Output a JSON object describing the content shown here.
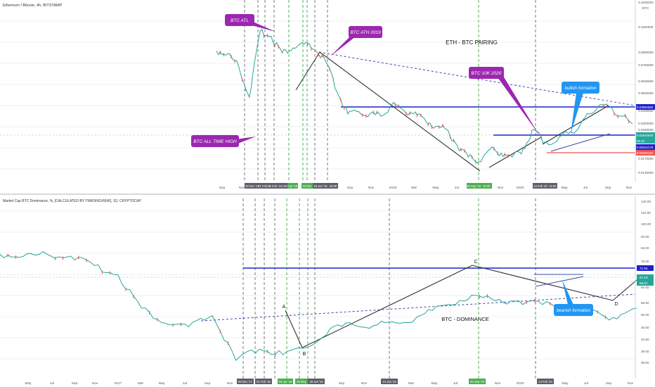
{
  "top_panel": {
    "title": "Ethereum / Bitcoin, 4h, BITSTAMP",
    "currency": "BTC",
    "center_label": "ETH  - BTC PAIRING",
    "price_labels": [
      "0.1000000",
      "0.1100000",
      "0.0900000",
      "0.0750000",
      "0.0600000",
      "0.0500000",
      "0.0400000",
      "0.0300000",
      "0.0250000",
      "0.0200000",
      "0.0170000",
      "0.0145000"
    ],
    "tags": {
      "blue": "0.03963682",
      "green": "0.02640000",
      "teal": "0.02614179",
      "red": "0.02045152",
      "small_teal": "96.34"
    },
    "callouts": {
      "btc_atl": "BTC ATL",
      "btc_ath_2019": "BTC ATH 2019",
      "btc_all_time_high": "BTC ALL TIME HIGH",
      "btc_10k_2020": "BTC 10K 2020",
      "bullish": "bullish formation"
    },
    "time_labels": [
      "Sep",
      "Nov",
      "Mar",
      "May",
      "Jul",
      "Sep",
      "Nov",
      "2019",
      "Mar",
      "May",
      "Jul",
      "Sep",
      "Nov",
      "2020",
      "Mar",
      "May",
      "Jul",
      "Sep",
      "Nov"
    ],
    "date_tags": [
      "19 Dec '17",
      "01 Feb '18",
      "02 Feb '18",
      "11:00",
      "Apr '18",
      "10 Dec",
      "26 Jun '18",
      "02:00",
      "06 Sep '19",
      "10:00",
      "13 Feb '20",
      "11:00"
    ]
  },
  "bottom_panel": {
    "title": "Market Cap BTC Dominance, %, [CALCULATED BY TRADINGVIEW], 1D, CRYPTOCAP",
    "center_label": "BTC - DOMINANCE",
    "price_labels": [
      "120.00",
      "110.00",
      "100.00",
      "92.00",
      "84.00",
      "76.00",
      "71.94",
      "67.18",
      "64.00",
      "56.50",
      "50.00",
      "46.50",
      "42.50",
      "38.50",
      "35.50"
    ],
    "tags": {
      "blue": "71.94",
      "teal": "67.18",
      "small_teal": "66.87"
    },
    "callouts": {
      "bearish": "bearish formation"
    },
    "points": {
      "a": "A",
      "b": "B",
      "c": "C",
      "d": "D"
    },
    "time_labels": [
      "May",
      "Jul",
      "Sep",
      "Nov",
      "2017",
      "Mar",
      "May",
      "Jul",
      "Sep",
      "Nov",
      "Mar",
      "May",
      "Jul",
      "Sep",
      "Nov",
      "2019",
      "Mar",
      "May",
      "Jul",
      "Sep",
      "Nov",
      "2020",
      "Mar",
      "May",
      "Jul",
      "Sep",
      "Nov"
    ],
    "date_tags": [
      "08 Dec '17",
      "01 Feb '18",
      "02 Apr '18",
      "28 May",
      "26 Jun '18",
      "13 Jan '19",
      "05 Sep '19",
      "13 Feb '20"
    ]
  },
  "colors": {
    "purple": "#9c27b0",
    "blue": "#1e22c8",
    "green": "#26a69a",
    "red": "#ef5350",
    "callout_blue": "#2196f3",
    "dark_tag": "#5d606b",
    "green_tag": "#4caf50"
  },
  "chart_data": [
    {
      "type": "line",
      "title": "Ethereum / Bitcoin, 4h, BITSTAMP",
      "x": [
        "2017-09",
        "2017-10",
        "2017-11",
        "2017-12",
        "2018-01",
        "2018-02",
        "2018-03",
        "2018-04",
        "2018-05",
        "2018-06",
        "2018-07",
        "2018-08",
        "2018-09",
        "2018-10",
        "2018-11",
        "2018-12",
        "2019-01",
        "2019-02",
        "2019-03",
        "2019-04",
        "2019-05",
        "2019-06",
        "2019-07",
        "2019-08",
        "2019-09",
        "2019-10",
        "2019-11",
        "2019-12",
        "2020-01",
        "2020-02",
        "2020-03",
        "2020-04",
        "2020-05",
        "2020-06",
        "2020-07",
        "2020-08",
        "2020-09",
        "2020-10",
        "2020-11"
      ],
      "series": [
        {
          "values": [
            0.074,
            0.071,
            0.061,
            0.04,
            0.097,
            0.09,
            0.072,
            0.077,
            0.081,
            0.075,
            0.064,
            0.043,
            0.032,
            0.033,
            0.032,
            0.031,
            0.036,
            0.034,
            0.032,
            0.03,
            0.027,
            0.026,
            0.021,
            0.018,
            0.017,
            0.02,
            0.019,
            0.018,
            0.02,
            0.026,
            0.022,
            0.022,
            0.025,
            0.026,
            0.032,
            0.036,
            0.035,
            0.031,
            0.028
          ]
        }
      ],
      "ylim": [
        0.014,
        0.11
      ],
      "yscale": "log"
    },
    {
      "type": "line",
      "title": "Market Cap BTC Dominance, %, [CALCULATED BY TRADINGVIEW], 1D, CRYPTOCAP",
      "x": [
        "2016-05",
        "2016-07",
        "2016-09",
        "2016-11",
        "2017-01",
        "2017-03",
        "2017-05",
        "2017-07",
        "2017-09",
        "2017-11",
        "2018-01",
        "2018-03",
        "2018-05",
        "2018-07",
        "2018-09",
        "2018-11",
        "2019-01",
        "2019-03",
        "2019-05",
        "2019-07",
        "2019-09",
        "2019-11",
        "2020-01",
        "2020-03",
        "2020-05",
        "2020-07",
        "2020-09",
        "2020-11"
      ],
      "series": [
        {
          "values": [
            93,
            92,
            93,
            92,
            87,
            82,
            64,
            56,
            54,
            60,
            36,
            42,
            39,
            43,
            53,
            55,
            55,
            56,
            61,
            66,
            71,
            68,
            68,
            66,
            65,
            62,
            59,
            64
          ]
        }
      ],
      "ylim": [
        33,
        120
      ]
    }
  ]
}
